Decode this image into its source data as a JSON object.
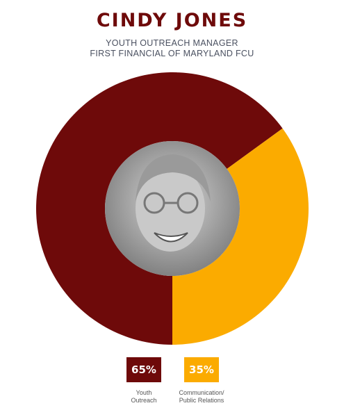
{
  "chart_data": {
    "type": "pie",
    "donut": true,
    "title": "CINDY JONES",
    "subtitle": [
      "YOUTH OUTREACH MANAGER",
      "FIRST FINANCIAL OF MARYLAND FCU"
    ],
    "categories": [
      "Youth Outreach",
      "Communication/ Public Relations"
    ],
    "values": [
      65,
      35
    ],
    "value_labels": [
      "65%",
      "35%"
    ],
    "colors": [
      "#6e0a0a",
      "#fbab00"
    ]
  }
}
